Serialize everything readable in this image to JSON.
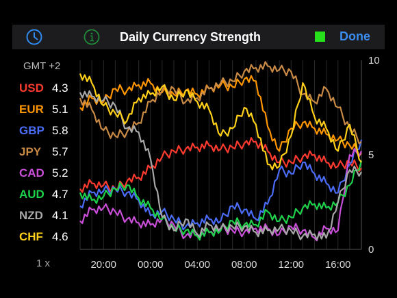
{
  "header": {
    "title": "Daily Currency Strength",
    "done_label": "Done",
    "status_color": "#27e01c",
    "left_icons": [
      "clock-icon",
      "info-icon"
    ]
  },
  "timezone_label": "GMT +2",
  "zoom_label": "1 x",
  "legend": [
    {
      "currency": "USD",
      "value": "4.3",
      "color": "#ff3b30"
    },
    {
      "currency": "EUR",
      "value": "5.1",
      "color": "#ff9500"
    },
    {
      "currency": "GBP",
      "value": "5.8",
      "color": "#4a6cf7"
    },
    {
      "currency": "JPY",
      "value": "5.7",
      "color": "#c98a45"
    },
    {
      "currency": "CAD",
      "value": "5.2",
      "color": "#c94ed8"
    },
    {
      "currency": "AUD",
      "value": "4.7",
      "color": "#1fd24b"
    },
    {
      "currency": "NZD",
      "value": "4.1",
      "color": "#a8a8a8"
    },
    {
      "currency": "CHF",
      "value": "4.6",
      "color": "#ffd019"
    }
  ],
  "chart_data": {
    "type": "line",
    "x": [
      "18:00",
      "19:00",
      "20:00",
      "21:00",
      "22:00",
      "23:00",
      "00:00",
      "01:00",
      "02:00",
      "03:00",
      "04:00",
      "05:00",
      "06:00",
      "07:00",
      "08:00",
      "09:00",
      "10:00",
      "11:00",
      "12:00",
      "13:00",
      "14:00",
      "15:00",
      "16:00",
      "17:00",
      "18:00"
    ],
    "x_tick_labels": [
      "20:00",
      "00:00",
      "04:00",
      "08:00",
      "12:00",
      "16:00"
    ],
    "y_tick_labels": [
      "0",
      "5",
      "10"
    ],
    "ylim": [
      0,
      10
    ],
    "grid": true,
    "series": [
      {
        "name": "USD",
        "color": "#ff3b30",
        "values": [
          3.2,
          3.5,
          3.4,
          3.2,
          3.6,
          3.8,
          4.3,
          4.9,
          5.2,
          5.3,
          5.4,
          5.5,
          5.3,
          5.4,
          5.6,
          5.7,
          5.2,
          4.6,
          4.6,
          4.9,
          5.0,
          4.6,
          4.4,
          4.6,
          4.3
        ]
      },
      {
        "name": "EUR",
        "color": "#ff9500",
        "values": [
          7.5,
          8.0,
          7.8,
          8.5,
          8.4,
          8.7,
          8.8,
          8.3,
          8.2,
          8.4,
          8.2,
          8.5,
          8.7,
          8.6,
          9.0,
          8.9,
          6.5,
          5.2,
          6.4,
          6.7,
          6.4,
          6.1,
          5.8,
          5.5,
          5.1
        ]
      },
      {
        "name": "GBP",
        "color": "#4a6cf7",
        "values": [
          2.3,
          3.0,
          3.1,
          3.2,
          3.0,
          2.6,
          1.8,
          2.0,
          1.6,
          1.2,
          1.4,
          1.6,
          1.5,
          2.3,
          2.1,
          1.6,
          2.4,
          4.2,
          4.0,
          4.6,
          4.0,
          3.5,
          3.0,
          4.5,
          5.8
        ]
      },
      {
        "name": "JPY",
        "color": "#c98a45",
        "values": [
          8.0,
          7.4,
          6.3,
          6.0,
          6.2,
          6.7,
          7.8,
          8.4,
          8.5,
          7.8,
          8.0,
          8.5,
          8.8,
          8.9,
          9.4,
          9.6,
          9.7,
          9.5,
          9.4,
          8.2,
          7.8,
          8.5,
          7.5,
          6.4,
          5.7
        ]
      },
      {
        "name": "CAD",
        "color": "#c94ed8",
        "values": [
          1.5,
          2.1,
          2.2,
          2.0,
          1.6,
          1.4,
          1.3,
          1.6,
          1.3,
          0.7,
          0.8,
          0.9,
          1.1,
          1.0,
          0.9,
          1.1,
          1.1,
          0.8,
          1.2,
          1.0,
          0.6,
          1.1,
          1.0,
          5.0,
          5.2
        ]
      },
      {
        "name": "AUD",
        "color": "#1fd24b",
        "values": [
          3.0,
          2.6,
          2.8,
          3.2,
          3.4,
          2.7,
          2.2,
          1.6,
          1.1,
          1.0,
          0.7,
          0.9,
          1.0,
          1.5,
          1.3,
          1.3,
          2.0,
          1.5,
          1.7,
          2.2,
          2.4,
          2.2,
          2.5,
          3.4,
          4.7
        ]
      },
      {
        "name": "NZD",
        "color": "#a8a8a8",
        "values": [
          8.3,
          8.1,
          7.9,
          7.6,
          6.4,
          6.2,
          4.8,
          1.7,
          1.0,
          1.6,
          0.8,
          1.3,
          1.1,
          1.2,
          1.2,
          0.9,
          1.0,
          1.1,
          1.0,
          0.7,
          0.8,
          0.6,
          2.5,
          4.2,
          4.1
        ]
      },
      {
        "name": "CHF",
        "color": "#ffd019",
        "values": [
          9.3,
          8.8,
          7.6,
          7.2,
          6.8,
          8.0,
          8.2,
          8.6,
          7.9,
          8.4,
          7.8,
          7.4,
          6.0,
          6.4,
          7.5,
          6.6,
          4.5,
          4.4,
          6.0,
          8.8,
          7.0,
          6.4,
          5.2,
          6.6,
          4.6
        ]
      }
    ]
  }
}
